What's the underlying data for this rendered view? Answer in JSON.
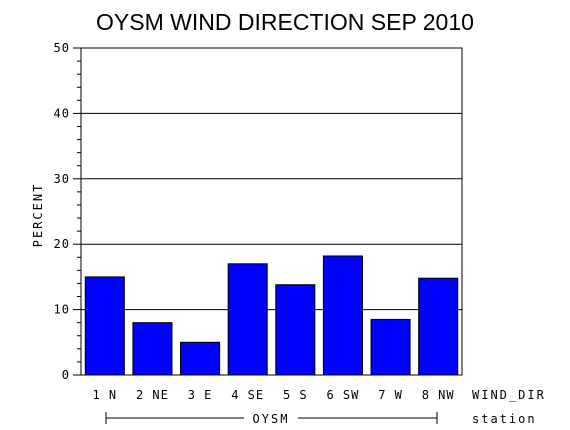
{
  "chart_data": {
    "type": "bar",
    "title": "OYSM WIND DIRECTION SEP 2010",
    "ylabel": "PERCENT",
    "xlabel": "WIND_DIR",
    "group_label": "OYSM",
    "group_axis_label": "station",
    "categories": [
      "1 N",
      "2 NE",
      "3 E",
      "4 SE",
      "5 S",
      "6 SW",
      "7 W",
      "8 NW"
    ],
    "values": [
      15.0,
      8.0,
      5.0,
      17.0,
      13.8,
      18.2,
      8.5,
      14.8
    ],
    "ylim": [
      0,
      50
    ],
    "yticks": [
      0,
      10,
      20,
      30,
      40,
      50
    ],
    "grid": true,
    "bar_color": "#0000ff"
  }
}
